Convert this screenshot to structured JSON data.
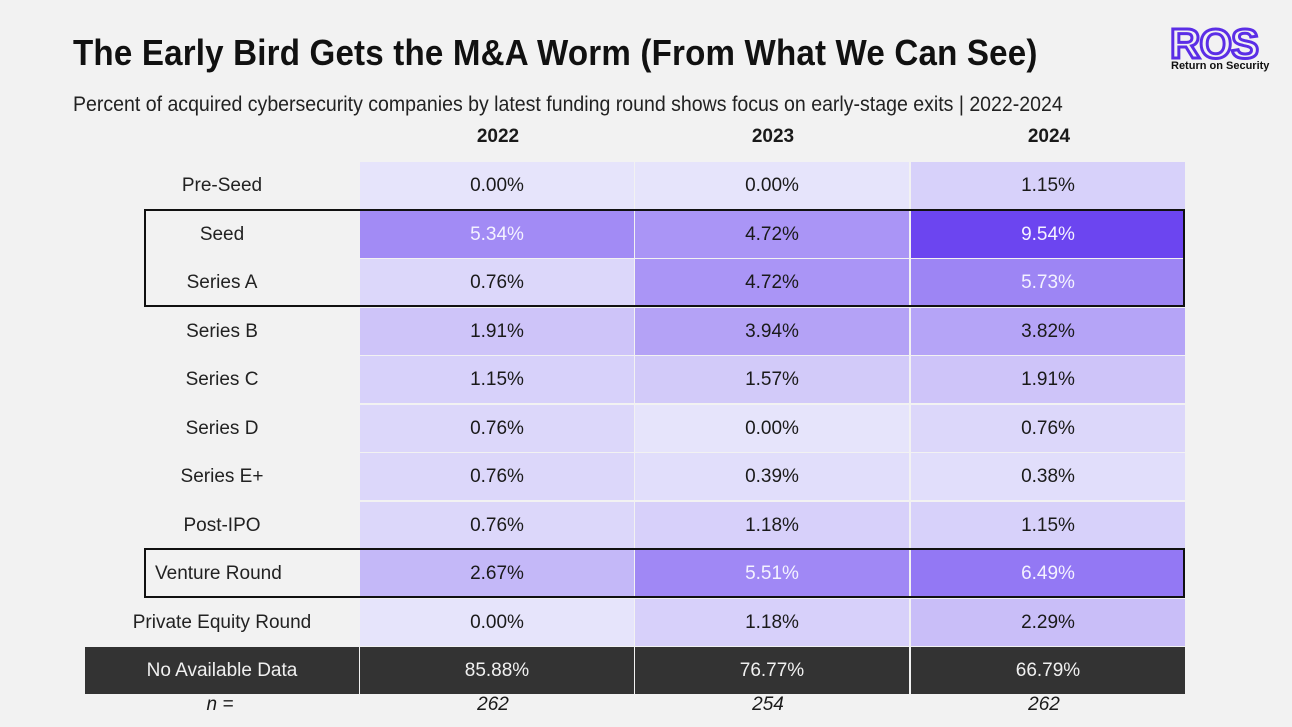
{
  "title": "The Early Bird Gets the M&A Worm (From What We Can See)",
  "subtitle": "Percent of acquired cybersecurity companies by latest funding round shows focus on early-stage exits | 2022-2024",
  "logo": {
    "mark": "ROS",
    "tagline": "Return on Security",
    "color": "#5b2ee6"
  },
  "chart_data": {
    "type": "heatmap",
    "columns": [
      "2022",
      "2023",
      "2024"
    ],
    "rows": [
      {
        "label": "Pre-Seed",
        "values": [
          "0.00%",
          "0.00%",
          "1.15%"
        ],
        "nums": [
          0.0,
          0.0,
          1.15
        ]
      },
      {
        "label": "Seed",
        "values": [
          "5.34%",
          "4.72%",
          "9.54%"
        ],
        "nums": [
          5.34,
          4.72,
          9.54
        ]
      },
      {
        "label": "Series A",
        "values": [
          "0.76%",
          "4.72%",
          "5.73%"
        ],
        "nums": [
          0.76,
          4.72,
          5.73
        ]
      },
      {
        "label": "Series B",
        "values": [
          "1.91%",
          "3.94%",
          "3.82%"
        ],
        "nums": [
          1.91,
          3.94,
          3.82
        ]
      },
      {
        "label": "Series C",
        "values": [
          "1.15%",
          "1.57%",
          "1.91%"
        ],
        "nums": [
          1.15,
          1.57,
          1.91
        ]
      },
      {
        "label": "Series D",
        "values": [
          "0.76%",
          "0.00%",
          "0.76%"
        ],
        "nums": [
          0.76,
          0.0,
          0.76
        ]
      },
      {
        "label": "Series E+",
        "values": [
          "0.76%",
          "0.39%",
          "0.38%"
        ],
        "nums": [
          0.76,
          0.39,
          0.38
        ]
      },
      {
        "label": "Post-IPO",
        "values": [
          "0.76%",
          "1.18%",
          "1.15%"
        ],
        "nums": [
          0.76,
          1.18,
          1.15
        ]
      },
      {
        "label": "Venture Round",
        "values": [
          "2.67%",
          "5.51%",
          "6.49%"
        ],
        "nums": [
          2.67,
          5.51,
          6.49
        ]
      },
      {
        "label": "Private Equity Round",
        "values": [
          "0.00%",
          "1.18%",
          "2.29%"
        ],
        "nums": [
          0.0,
          1.18,
          2.29
        ]
      },
      {
        "label": "No Available Data",
        "values": [
          "85.88%",
          "76.77%",
          "66.79%"
        ],
        "nums": [
          85.88,
          76.77,
          66.79
        ]
      }
    ],
    "n_label": "n =",
    "n_values": [
      "262",
      "254",
      "262"
    ],
    "highlighted_rows": [
      "Seed",
      "Series A",
      "Venture Round"
    ],
    "color_scale": {
      "low": "#e6e4fb",
      "high": "#6c45f0",
      "min": 0,
      "max": 9.54,
      "dark_row_color": "#333333"
    }
  }
}
